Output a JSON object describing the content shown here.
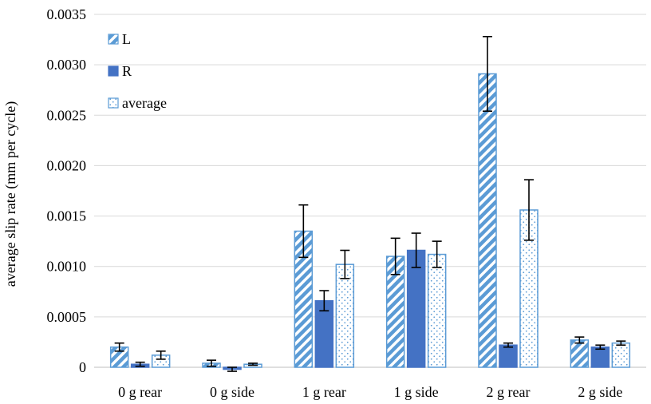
{
  "chart_data": {
    "type": "bar",
    "title": "",
    "xlabel": "",
    "ylabel": "average slip rate (mm per cycle)",
    "ylim": [
      0,
      0.0035
    ],
    "yticks": [
      "0",
      "0.0005",
      "0.0010",
      "0.0015",
      "0.0020",
      "0.0025",
      "0.0030",
      "0.0035"
    ],
    "grid": "horizontal",
    "legend_position": "top-left",
    "categories": [
      "0 g rear",
      "0 g side",
      "1 g rear",
      "1 g side",
      "2 g rear",
      "2 g side"
    ],
    "series": [
      {
        "name": "L",
        "pattern": "diagonal-stripes",
        "color": "#5b9bd5",
        "values": [
          0.0002,
          4e-05,
          0.00135,
          0.0011,
          0.00291,
          0.00027
        ],
        "errors": [
          4e-05,
          3e-05,
          0.00026,
          0.00018,
          0.00037,
          3e-05
        ]
      },
      {
        "name": "R",
        "pattern": "solid",
        "color": "#4472c4",
        "values": [
          3e-05,
          -2e-05,
          0.00066,
          0.00116,
          0.00022,
          0.0002
        ],
        "errors": [
          2e-05,
          2e-05,
          0.0001,
          0.00017,
          2e-05,
          2e-05
        ]
      },
      {
        "name": "average",
        "pattern": "dots",
        "color": "#5b9bd5",
        "values": [
          0.00012,
          3e-05,
          0.00102,
          0.00112,
          0.00156,
          0.00024
        ],
        "errors": [
          4e-05,
          1e-05,
          0.00014,
          0.00013,
          0.0003,
          2e-05
        ]
      }
    ]
  }
}
